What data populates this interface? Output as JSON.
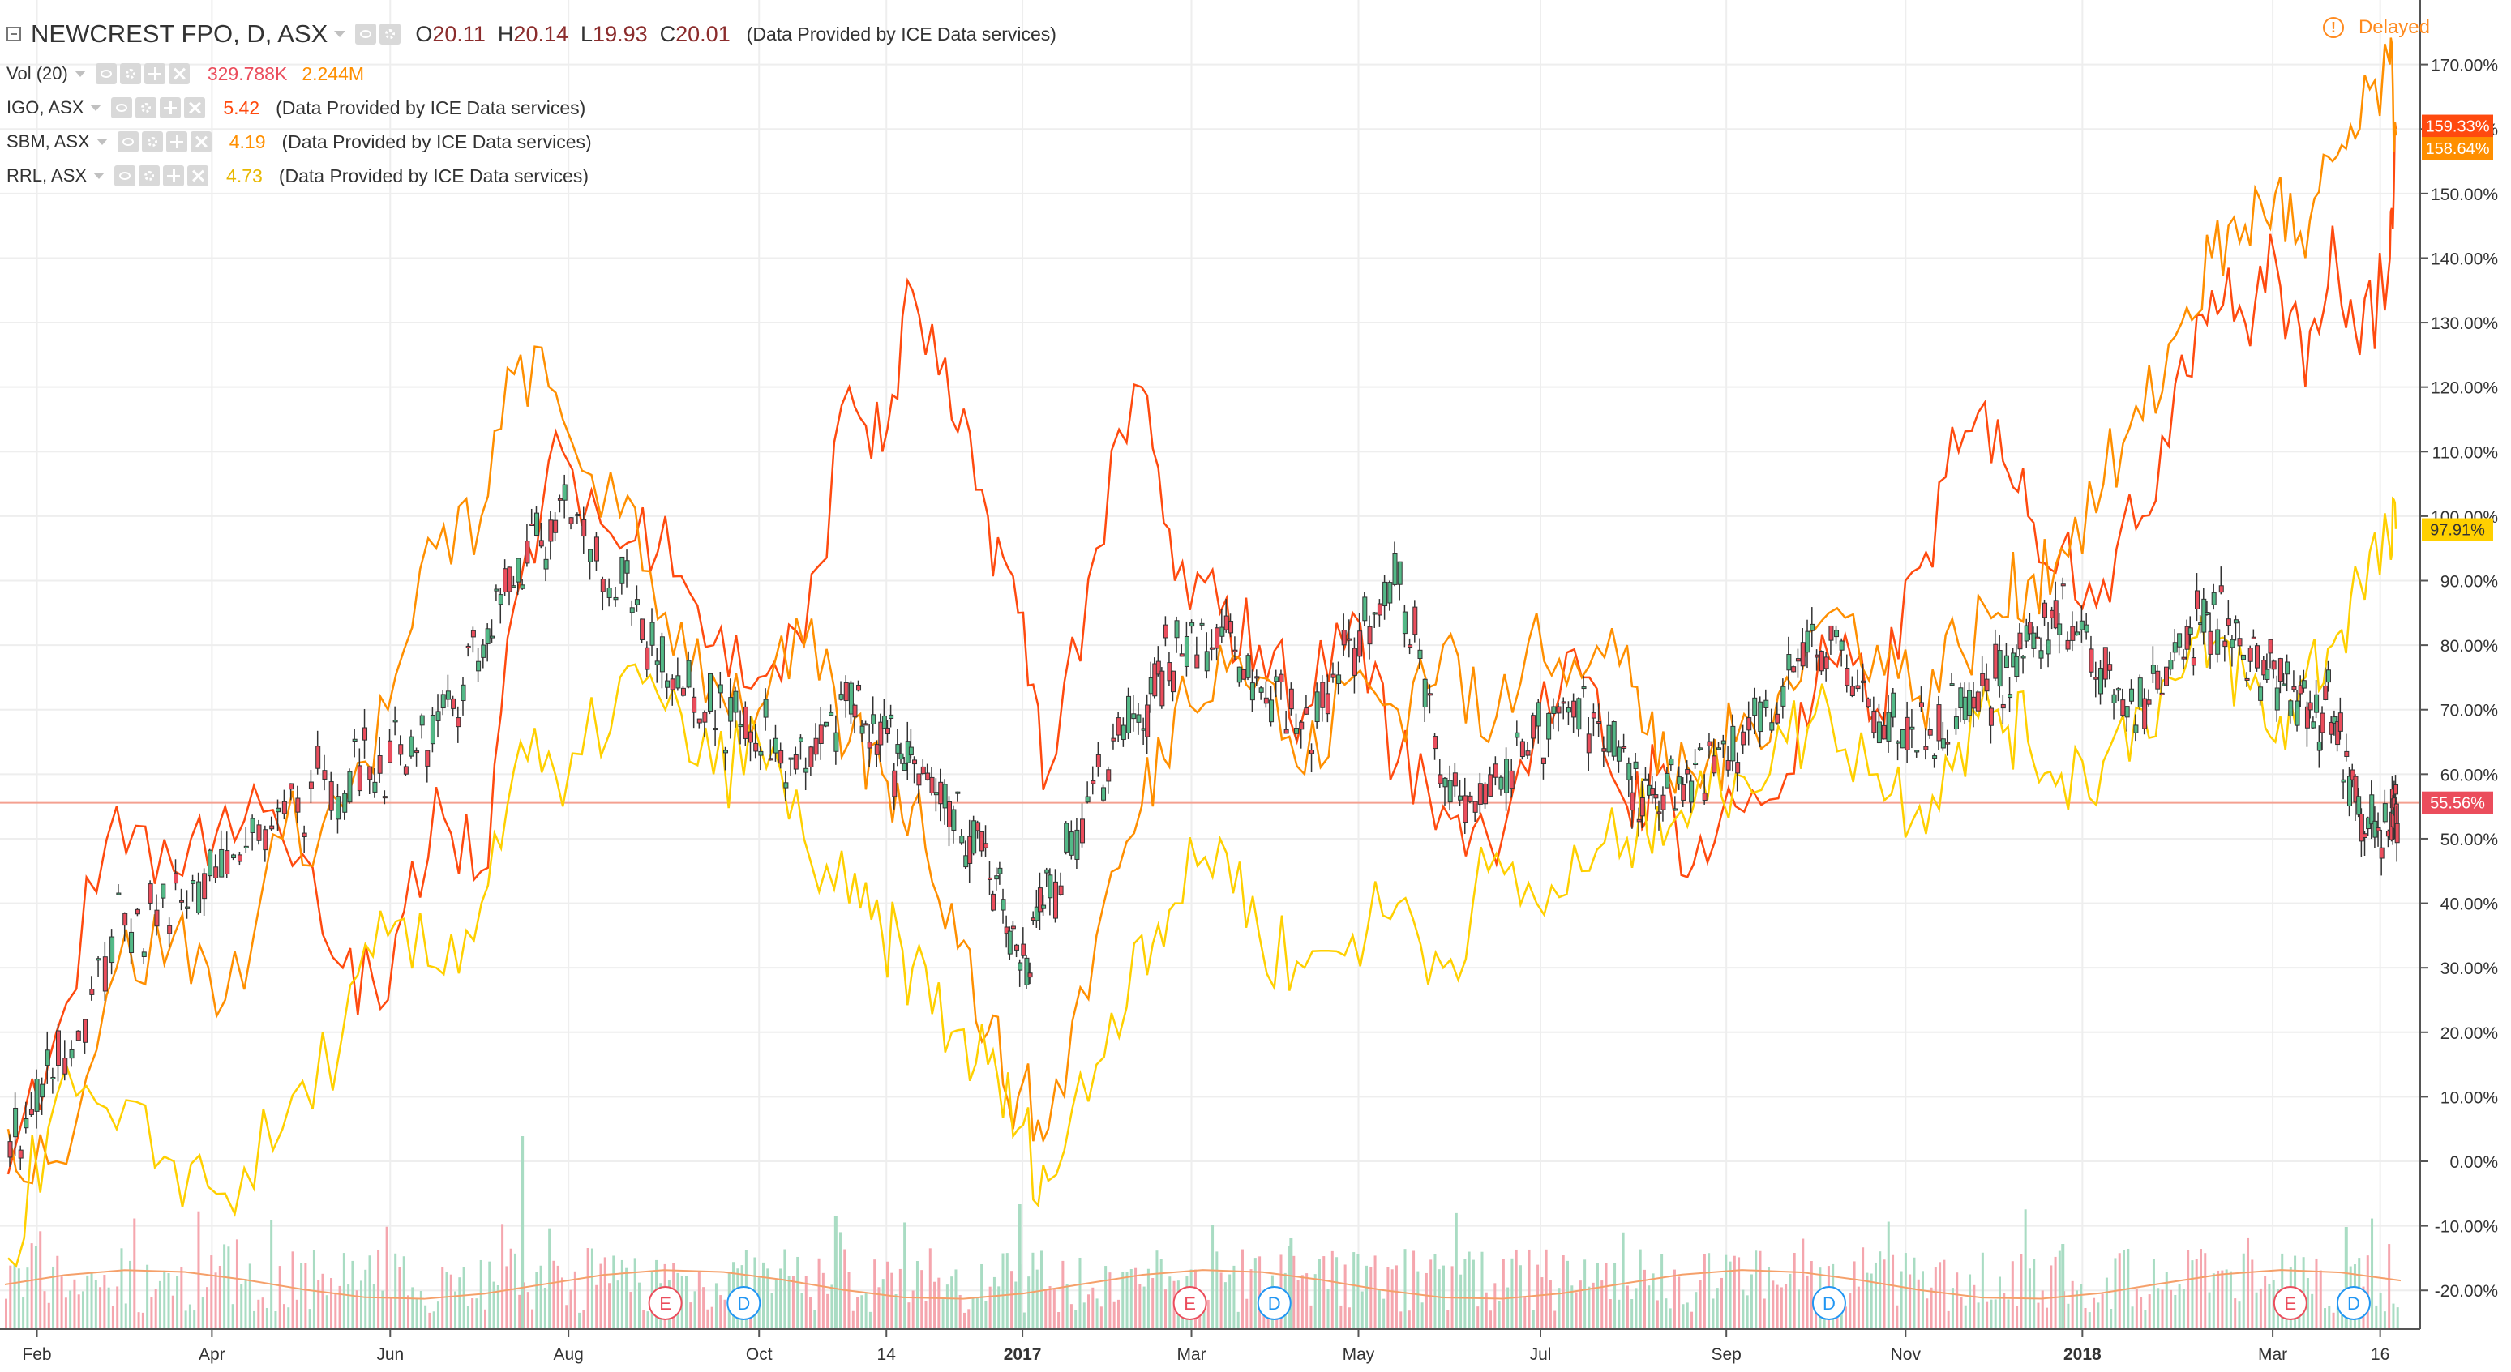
{
  "legend": {
    "main": {
      "symbol": "NEWCREST FPO, D, ASX",
      "o_label": "O",
      "o": "20.11",
      "h_label": "H",
      "h": "20.14",
      "l_label": "L",
      "l": "19.93",
      "c_label": "C",
      "c": "20.01",
      "provider": "(Data Provided by ICE Data services)"
    },
    "vol": {
      "label": "Vol (20)",
      "value1": "329.788K",
      "value2": "2.244M"
    },
    "compare": [
      {
        "label": "IGO, ASX",
        "value": "5.42",
        "provider": "(Data Provided by ICE Data services)"
      },
      {
        "label": "SBM, ASX",
        "value": "4.19",
        "provider": "(Data Provided by ICE Data services)"
      },
      {
        "label": "RRL, ASX",
        "value": "4.73",
        "provider": "(Data Provided by ICE Data services)"
      }
    ]
  },
  "status": {
    "delayed_label": "Delayed",
    "delayed_icon": "exclamation-circle-icon"
  },
  "colors": {
    "igo": "#ff4a0f",
    "sbm": "#ff8f00",
    "rrl": "#ffd000",
    "up": "#53b987",
    "down": "#eb4d5c",
    "vol_up": "#a9dcc3",
    "vol_down": "#f5a6ae",
    "vol_ma": "#f5a06a",
    "baseline": "#f4a090",
    "earnings": "#eb4d5c",
    "dividend": "#2196f3",
    "grid": "#eeeeee",
    "axis_text": "#333333"
  },
  "chart_data": {
    "type": "line",
    "yaxis": {
      "ticks": [
        "170.00%",
        "160.00%",
        "150.00%",
        "140.00%",
        "130.00%",
        "120.00%",
        "110.00%",
        "100.00%",
        "90.00%",
        "80.00%",
        "70.00%",
        "60.00%",
        "50.00%",
        "40.00%",
        "30.00%",
        "20.00%",
        "10.00%",
        "0.00%",
        "-10.00%",
        "-20.00%"
      ],
      "ylim": [
        -26,
        180
      ]
    },
    "xaxis": {
      "ticks": [
        "Feb",
        "Apr",
        "Jun",
        "Aug",
        "Oct",
        "14",
        "2017",
        "Mar",
        "May",
        "Jul",
        "Sep",
        "Nov",
        "2018",
        "Mar",
        "16"
      ],
      "bold_ticks": [
        "2017",
        "2018"
      ],
      "range": [
        "2016-01-20",
        "2018-03-22"
      ]
    },
    "price_labels": [
      {
        "series": "IGO, ASX",
        "text": "159.33%"
      },
      {
        "series": "SBM, ASX",
        "text": "158.64%"
      },
      {
        "series": "RRL, ASX",
        "text": "97.91%"
      },
      {
        "series": "NEWCREST FPO",
        "text": "55.56%"
      }
    ],
    "baseline_value": 55.56,
    "series": [
      {
        "name": "IGO, ASX",
        "kind": "line",
        "x": [
          "2016-01-20",
          "2016-02-05",
          "2016-02-25",
          "2016-03-15",
          "2016-04-01",
          "2016-04-20",
          "2016-05-10",
          "2016-05-25",
          "2016-06-10",
          "2016-06-25",
          "2016-07-08",
          "2016-07-22",
          "2016-08-10",
          "2016-08-25",
          "2016-09-10",
          "2016-09-25",
          "2016-10-10",
          "2016-10-25",
          "2016-11-05",
          "2016-11-15",
          "2016-11-28",
          "2016-12-10",
          "2016-12-20",
          "2016-12-30",
          "2017-01-15",
          "2017-01-30",
          "2017-02-10",
          "2017-02-25",
          "2017-03-10",
          "2017-03-25",
          "2017-04-10",
          "2017-04-25",
          "2017-05-10",
          "2017-05-25",
          "2017-06-10",
          "2017-06-25",
          "2017-07-10",
          "2017-07-20",
          "2017-08-01",
          "2017-08-15",
          "2017-09-01",
          "2017-09-15",
          "2017-10-01",
          "2017-10-15",
          "2017-10-28",
          "2017-11-10",
          "2017-11-20",
          "2017-12-01",
          "2017-12-15",
          "2017-12-28",
          "2018-01-10",
          "2018-01-20",
          "2018-01-31",
          "2018-02-10",
          "2018-02-20",
          "2018-03-01",
          "2018-03-10",
          "2018-03-20",
          "2018-03-22"
        ],
        "values": [
          -2,
          20,
          55,
          45,
          55,
          50,
          30,
          25,
          58,
          45,
          90,
          110,
          95,
          100,
          80,
          75,
          80,
          120,
          110,
          135,
          115,
          100,
          85,
          60,
          95,
          120,
          90,
          85,
          80,
          70,
          85,
          62,
          55,
          50,
          68,
          75,
          55,
          60,
          46,
          55,
          60,
          78,
          70,
          92,
          110,
          115,
          100,
          95,
          90,
          100,
          125,
          135,
          130,
          140,
          120,
          145,
          125,
          140,
          160
        ],
        "line_color": "#ff4a0f"
      },
      {
        "name": "SBM, ASX",
        "kind": "line",
        "x": [
          "2016-01-20",
          "2016-02-05",
          "2016-02-25",
          "2016-03-15",
          "2016-04-01",
          "2016-04-20",
          "2016-05-10",
          "2016-05-25",
          "2016-06-10",
          "2016-06-25",
          "2016-07-08",
          "2016-07-22",
          "2016-08-10",
          "2016-08-25",
          "2016-09-10",
          "2016-09-25",
          "2016-10-10",
          "2016-10-25",
          "2016-11-05",
          "2016-11-15",
          "2016-11-28",
          "2016-12-10",
          "2016-12-20",
          "2016-12-30",
          "2017-01-15",
          "2017-01-30",
          "2017-02-10",
          "2017-02-25",
          "2017-03-10",
          "2017-03-25",
          "2017-04-10",
          "2017-04-25",
          "2017-05-10",
          "2017-05-25",
          "2017-06-10",
          "2017-06-25",
          "2017-07-10",
          "2017-07-20",
          "2017-08-01",
          "2017-08-15",
          "2017-09-01",
          "2017-09-15",
          "2017-10-01",
          "2017-10-15",
          "2017-10-28",
          "2017-11-10",
          "2017-11-20",
          "2017-12-01",
          "2017-12-15",
          "2017-12-28",
          "2018-01-10",
          "2018-01-20",
          "2018-01-31",
          "2018-02-10",
          "2018-02-20",
          "2018-03-01",
          "2018-03-10",
          "2018-03-20",
          "2018-03-22"
        ],
        "values": [
          5,
          0,
          30,
          35,
          25,
          50,
          55,
          70,
          95,
          100,
          125,
          115,
          100,
          85,
          75,
          70,
          80,
          65,
          60,
          55,
          40,
          20,
          10,
          5,
          35,
          55,
          70,
          80,
          75,
          60,
          75,
          70,
          80,
          65,
          85,
          75,
          80,
          60,
          60,
          65,
          75,
          85,
          80,
          72,
          80,
          85,
          90,
          95,
          105,
          115,
          130,
          140,
          145,
          150,
          140,
          155,
          160,
          170,
          159
        ],
        "line_color": "#ff8f00"
      },
      {
        "name": "RRL, ASX",
        "kind": "line",
        "x": [
          "2016-01-20",
          "2016-02-05",
          "2016-02-25",
          "2016-03-15",
          "2016-04-01",
          "2016-04-20",
          "2016-05-10",
          "2016-05-25",
          "2016-06-10",
          "2016-06-25",
          "2016-07-08",
          "2016-07-22",
          "2016-08-10",
          "2016-08-25",
          "2016-09-10",
          "2016-09-25",
          "2016-10-10",
          "2016-10-25",
          "2016-11-05",
          "2016-11-15",
          "2016-11-28",
          "2016-12-10",
          "2016-12-20",
          "2016-12-30",
          "2017-01-15",
          "2017-01-30",
          "2017-02-10",
          "2017-02-25",
          "2017-03-10",
          "2017-03-25",
          "2017-04-10",
          "2017-04-25",
          "2017-05-10",
          "2017-05-25",
          "2017-06-10",
          "2017-06-25",
          "2017-07-10",
          "2017-07-20",
          "2017-08-01",
          "2017-08-15",
          "2017-09-01",
          "2017-09-15",
          "2017-10-01",
          "2017-10-15",
          "2017-10-28",
          "2017-11-10",
          "2017-11-20",
          "2017-12-01",
          "2017-12-15",
          "2017-12-28",
          "2018-01-10",
          "2018-01-20",
          "2018-01-31",
          "2018-02-10",
          "2018-02-20",
          "2018-03-01",
          "2018-03-10",
          "2018-03-20",
          "2018-03-22"
        ],
        "values": [
          -15,
          10,
          5,
          0,
          -5,
          5,
          20,
          35,
          30,
          40,
          65,
          55,
          75,
          70,
          60,
          65,
          50,
          40,
          35,
          30,
          20,
          15,
          5,
          -3,
          15,
          35,
          40,
          50,
          35,
          30,
          35,
          40,
          30,
          45,
          40,
          45,
          50,
          55,
          55,
          60,
          65,
          70,
          60,
          55,
          65,
          70,
          65,
          60,
          62,
          70,
          75,
          80,
          75,
          65,
          75,
          80,
          90,
          95,
          98
        ],
        "line_color": "#ffd000"
      },
      {
        "name": "NEWCREST FPO",
        "kind": "candle",
        "x": [
          "2016-01-20",
          "2016-02-05",
          "2016-02-25",
          "2016-03-15",
          "2016-04-01",
          "2016-04-20",
          "2016-05-10",
          "2016-05-25",
          "2016-06-10",
          "2016-06-25",
          "2016-07-08",
          "2016-07-22",
          "2016-08-10",
          "2016-08-25",
          "2016-09-10",
          "2016-09-25",
          "2016-10-10",
          "2016-10-25",
          "2016-11-05",
          "2016-11-15",
          "2016-11-28",
          "2016-12-10",
          "2016-12-20",
          "2016-12-30",
          "2017-01-15",
          "2017-01-30",
          "2017-02-10",
          "2017-02-25",
          "2017-03-10",
          "2017-03-25",
          "2017-04-10",
          "2017-04-25",
          "2017-05-10",
          "2017-05-25",
          "2017-06-10",
          "2017-06-25",
          "2017-07-10",
          "2017-07-20",
          "2017-08-01",
          "2017-08-15",
          "2017-09-01",
          "2017-09-15",
          "2017-10-01",
          "2017-10-15",
          "2017-10-28",
          "2017-11-10",
          "2017-11-20",
          "2017-12-01",
          "2017-12-15",
          "2017-12-28",
          "2018-01-10",
          "2018-01-20",
          "2018-01-31",
          "2018-02-10",
          "2018-02-20",
          "2018-03-01",
          "2018-03-10",
          "2018-03-20",
          "2018-03-22"
        ],
        "values": [
          2,
          15,
          35,
          40,
          45,
          55,
          60,
          62,
          68,
          80,
          95,
          100,
          90,
          75,
          70,
          65,
          62,
          70,
          65,
          60,
          55,
          45,
          30,
          40,
          60,
          70,
          80,
          80,
          75,
          65,
          80,
          90,
          60,
          58,
          65,
          70,
          60,
          55,
          60,
          65,
          75,
          80,
          70,
          65,
          70,
          75,
          80,
          85,
          75,
          70,
          80,
          85,
          78,
          75,
          70,
          70,
          52,
          53,
          55.56
        ],
        "up_color": "#53b987",
        "down_color": "#eb4d5c"
      }
    ],
    "volume": {
      "base_color_up": "#a9dcc3",
      "base_color_down": "#f5a6ae",
      "spikes": [
        {
          "x": "2016-07-08",
          "value": 34
        },
        {
          "x": "2016-10-20",
          "value": 20
        },
        {
          "x": "2016-12-20",
          "value": 22
        },
        {
          "x": "2017-03-20",
          "value": 16
        },
        {
          "x": "2017-12-01",
          "value": 15
        },
        {
          "x": "2018-03-05",
          "value": 18
        }
      ]
    },
    "events": [
      {
        "type": "E",
        "x": "2016-08-25"
      },
      {
        "type": "D",
        "x": "2016-09-20"
      },
      {
        "type": "E",
        "x": "2017-02-15"
      },
      {
        "type": "D",
        "x": "2017-03-15"
      },
      {
        "type": "D",
        "x": "2017-09-15"
      },
      {
        "type": "E",
        "x": "2018-02-15"
      },
      {
        "type": "D",
        "x": "2018-03-08"
      }
    ]
  }
}
